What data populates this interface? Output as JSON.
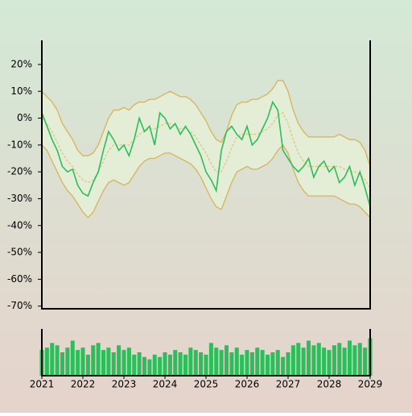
{
  "chart_data": [
    {
      "type": "line",
      "x": [
        2021,
        2021.125,
        2021.25,
        2021.375,
        2021.5,
        2021.625,
        2021.75,
        2021.875,
        2022,
        2022.125,
        2022.25,
        2022.375,
        2022.5,
        2022.625,
        2022.75,
        2022.875,
        2023,
        2023.125,
        2023.25,
        2023.375,
        2023.5,
        2023.625,
        2023.75,
        2023.875,
        2024,
        2024.125,
        2024.25,
        2024.375,
        2024.5,
        2024.625,
        2024.75,
        2024.875,
        2025,
        2025.125,
        2025.25,
        2025.375,
        2025.5,
        2025.625,
        2025.75,
        2025.875,
        2026,
        2026.125,
        2026.25,
        2026.375,
        2026.5,
        2026.625,
        2026.75,
        2026.875,
        2027,
        2027.125,
        2027.25,
        2027.375,
        2027.5,
        2027.625,
        2027.75,
        2027.875,
        2028,
        2028.125,
        2028.25,
        2028.375,
        2028.5,
        2028.625,
        2028.75,
        2028.875,
        2029
      ],
      "xlim": [
        2021,
        2029
      ],
      "ylim": [
        -71,
        29
      ],
      "yticks": [
        {
          "value": -70,
          "label": "-70%"
        },
        {
          "value": -60,
          "label": "-60%"
        },
        {
          "value": -50,
          "label": "-50%"
        },
        {
          "value": -40,
          "label": "-40%"
        },
        {
          "value": -30,
          "label": "-30%"
        },
        {
          "value": -20,
          "label": "-20%"
        },
        {
          "value": -10,
          "label": "-10%"
        },
        {
          "value": 0,
          "label": "0%"
        },
        {
          "value": 10,
          "label": "10%"
        },
        {
          "value": 20,
          "label": "20%"
        }
      ],
      "band_fill": "#e4edd6",
      "series": [
        {
          "color": "#d6b35c",
          "values": [
            10,
            8,
            6,
            3,
            -2,
            -5,
            -8,
            -12,
            -14,
            -14,
            -13,
            -10,
            -5,
            0,
            3,
            3,
            4,
            3,
            5,
            6,
            6,
            7,
            7,
            8,
            9,
            10,
            9,
            8,
            8,
            7,
            5,
            2,
            -1,
            -5,
            -8,
            -9,
            -5,
            1,
            5,
            6,
            6,
            7,
            7,
            8,
            9,
            11,
            14,
            14,
            10,
            3,
            -2,
            -5,
            -7,
            -7,
            -7,
            -7,
            -7,
            -7,
            -6,
            -7,
            -8,
            -8,
            -9,
            -12,
            -18
          ]
        },
        {
          "color": "#d6b35c",
          "values": [
            -10,
            -12,
            -16,
            -20,
            -24,
            -27,
            -29,
            -32,
            -35,
            -37,
            -35,
            -31,
            -27,
            -24,
            -23,
            -24,
            -25,
            -24,
            -21,
            -18,
            -16,
            -15,
            -15,
            -14,
            -13,
            -13,
            -14,
            -15,
            -16,
            -17,
            -19,
            -22,
            -26,
            -30,
            -33,
            -34,
            -29,
            -24,
            -20,
            -19,
            -18,
            -19,
            -19,
            -18,
            -17,
            -15,
            -12,
            -10,
            -13,
            -19,
            -24,
            -27,
            -29,
            -29,
            -29,
            -29,
            -29,
            -29,
            -30,
            -31,
            -32,
            -32,
            -33,
            -35,
            -37
          ]
        },
        {
          "color": "#e2c57a",
          "dashed": true,
          "values": [
            0,
            -2,
            -5,
            -9,
            -13,
            -16,
            -18,
            -21,
            -23,
            -24,
            -23,
            -20,
            -16,
            -12,
            -10,
            -10,
            -10,
            -10,
            -8,
            -6,
            -5,
            -4,
            -4,
            -3,
            -2,
            -2,
            -3,
            -4,
            -4,
            -5,
            -7,
            -10,
            -13,
            -17,
            -20,
            -20,
            -16,
            -11,
            -7,
            -6,
            -6,
            -6,
            -6,
            -5,
            -4,
            -2,
            1,
            2,
            -2,
            -8,
            -13,
            -16,
            -18,
            -18,
            -18,
            -18,
            -18,
            -18,
            -18,
            -19,
            -20,
            -20,
            -21,
            -23,
            -26
          ]
        },
        {
          "color": "#2dbd5a",
          "values": [
            2,
            -3,
            -8,
            -12,
            -18,
            -20,
            -19,
            -25,
            -28,
            -29,
            -24,
            -20,
            -12,
            -5,
            -8,
            -12,
            -10,
            -14,
            -8,
            0,
            -5,
            -3,
            -10,
            2,
            0,
            -4,
            -2,
            -6,
            -3,
            -6,
            -10,
            -14,
            -20,
            -23,
            -27,
            -12,
            -5,
            -3,
            -6,
            -8,
            -3,
            -10,
            -8,
            -4,
            0,
            6,
            3,
            -12,
            -15,
            -18,
            -20,
            -18,
            -15,
            -22,
            -18,
            -16,
            -20,
            -18,
            -24,
            -22,
            -18,
            -25,
            -20,
            -26,
            -33
          ]
        }
      ]
    },
    {
      "type": "bar",
      "x": [
        2021,
        2021.125,
        2021.25,
        2021.375,
        2021.5,
        2021.625,
        2021.75,
        2021.875,
        2022,
        2022.125,
        2022.25,
        2022.375,
        2022.5,
        2022.625,
        2022.75,
        2022.875,
        2023,
        2023.125,
        2023.25,
        2023.375,
        2023.5,
        2023.625,
        2023.75,
        2023.875,
        2024,
        2024.125,
        2024.25,
        2024.375,
        2024.5,
        2024.625,
        2024.75,
        2024.875,
        2025,
        2025.125,
        2025.25,
        2025.375,
        2025.5,
        2025.625,
        2025.75,
        2025.875,
        2026,
        2026.125,
        2026.25,
        2026.375,
        2026.5,
        2026.625,
        2026.75,
        2026.875,
        2027,
        2027.125,
        2027.25,
        2027.375,
        2027.5,
        2027.625,
        2027.75,
        2027.875,
        2028,
        2028.125,
        2028.25,
        2028.375,
        2028.5,
        2028.625,
        2028.75,
        2028.875,
        2029
      ],
      "xlim": [
        2021,
        2029
      ],
      "xticks": [
        2021,
        2022,
        2023,
        2024,
        2025,
        2026,
        2027,
        2028,
        2029
      ],
      "ylim": [
        0,
        100
      ],
      "color": "#2dbd5a",
      "values": [
        55,
        60,
        70,
        65,
        50,
        60,
        75,
        55,
        60,
        45,
        65,
        70,
        55,
        60,
        50,
        65,
        55,
        60,
        45,
        50,
        40,
        35,
        45,
        40,
        50,
        45,
        55,
        50,
        45,
        60,
        55,
        50,
        45,
        70,
        60,
        55,
        65,
        50,
        60,
        45,
        55,
        50,
        60,
        55,
        45,
        50,
        55,
        40,
        50,
        65,
        70,
        60,
        75,
        65,
        70,
        60,
        55,
        65,
        70,
        60,
        75,
        65,
        70,
        60,
        80
      ]
    }
  ]
}
